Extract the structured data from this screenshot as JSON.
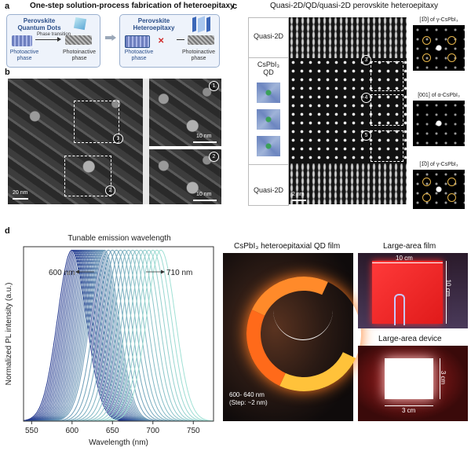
{
  "panel_a": {
    "letter": "a",
    "title": "One-step solution-process fabrication of heteroepitaxy",
    "box1": {
      "title_line1": "Perovskite",
      "title_line2": "Quantum Dots",
      "arrow_label": "Phase transition",
      "left_label": "Photoactive phase",
      "right_label": "Photoinactive phase"
    },
    "box2": {
      "title_line1": "Perovskite",
      "title_line2": "Heteroepitaxy",
      "left_label": "Photoactive phase",
      "right_label": "Photoinactive phase"
    }
  },
  "panel_b": {
    "letter": "b",
    "markers": [
      "1",
      "2"
    ],
    "scale_main": "20 nm",
    "scale_zoom1": "10 nm",
    "scale_zoom2": "10 nm"
  },
  "panel_c": {
    "letter": "c",
    "title": "Quasi-2D/QD/quasi-2D perovskite heteroepitaxy",
    "label_top": "Quasi-2D",
    "label_mid_line1": "CsPbI₃",
    "label_mid_line2": "QD",
    "label_bottom": "Quasi-2D",
    "scale": "2 nm",
    "markers": [
      "3",
      "4",
      "5"
    ],
    "fft_labels": [
      "[1̅0] of γ-CsPbI₃",
      "[001] of α-CsPbI₃",
      "[1̅0] of γ-CsPbI₃"
    ]
  },
  "panel_d": {
    "letter": "d",
    "chart_title": "Tunable emission wavelength",
    "left_ann": "600 nm",
    "right_ann": "710 nm",
    "photo_title": "CsPbI₃ heteroepitaxial QD film",
    "photo_caption_line1": "600- 640 nm",
    "photo_caption_line2": "(Step: ~2 nm)",
    "large_film_title": "Large-area film",
    "large_film_w": "10 cm",
    "large_film_h": "10 cm",
    "large_device_title": "Large-area device",
    "large_device_w": "3 cm",
    "large_device_h": "3 cm"
  },
  "chart_data": {
    "type": "line",
    "title": "Tunable emission wavelength",
    "xlabel": "Wavelength (nm)",
    "ylabel": "Normalized PL intensity (a.u.)",
    "xlim": [
      540,
      775
    ],
    "ylim": [
      0,
      1.02
    ],
    "xticks": [
      "550",
      "600",
      "650",
      "700",
      "750"
    ],
    "xtick_values": [
      550,
      600,
      650,
      700,
      750
    ],
    "peaks": [
      600,
      602,
      604,
      606,
      608,
      610,
      612,
      614,
      616,
      618,
      620,
      622,
      624,
      626,
      628,
      630,
      632,
      634,
      636,
      638,
      640,
      645,
      650,
      655,
      660,
      665,
      670,
      675,
      680,
      685,
      690,
      695,
      700,
      705,
      710
    ],
    "fwhm_nm": 42,
    "color_start": "#1a2f8a",
    "color_end": "#9fe0d4"
  }
}
